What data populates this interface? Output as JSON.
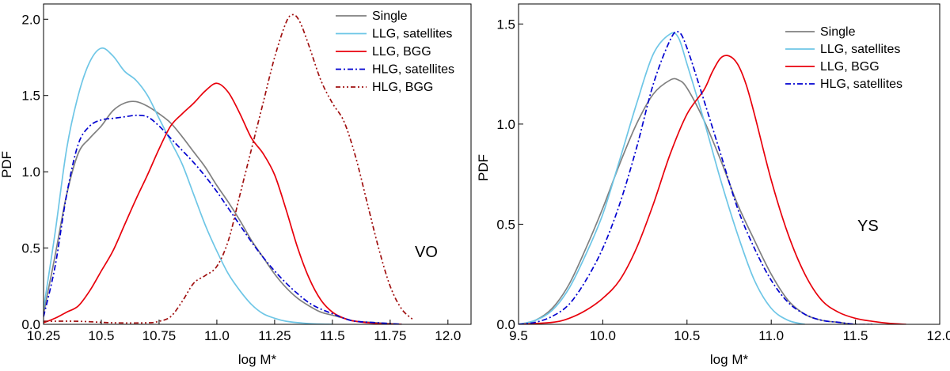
{
  "chart_data": [
    {
      "type": "line",
      "id": "left",
      "xlabel": "log M*",
      "ylabel": "PDF",
      "annotation": "VO",
      "xlim": [
        10.25,
        12.1
      ],
      "ylim": [
        0,
        2.1
      ],
      "xticks": [
        10.25,
        10.5,
        10.75,
        11.0,
        11.25,
        11.5,
        11.75,
        12.0
      ],
      "xtick_labels": [
        "10.25",
        "10.5",
        "10.75",
        "11.0",
        "11.25",
        "11.5",
        "11.75",
        "12.0"
      ],
      "yticks": [
        0.0,
        0.5,
        1.0,
        1.5,
        2.0
      ],
      "ytick_labels": [
        "0.0",
        "0.5",
        "1.0",
        "1.5",
        "2.0"
      ],
      "legend_position": "top-right",
      "series": [
        {
          "name": "Single",
          "color": "#808080",
          "dash": "solid",
          "x": [
            10.25,
            10.3,
            10.35,
            10.4,
            10.45,
            10.5,
            10.55,
            10.6,
            10.65,
            10.7,
            10.75,
            10.8,
            10.85,
            10.9,
            10.95,
            11.0,
            11.05,
            11.1,
            11.15,
            11.2,
            11.25,
            11.3,
            11.35,
            11.4,
            11.45,
            11.5,
            11.55,
            11.6,
            11.7,
            11.8
          ],
          "y": [
            0.07,
            0.45,
            0.85,
            1.12,
            1.22,
            1.3,
            1.4,
            1.45,
            1.46,
            1.43,
            1.38,
            1.32,
            1.23,
            1.13,
            1.03,
            0.91,
            0.8,
            0.68,
            0.55,
            0.44,
            0.33,
            0.24,
            0.17,
            0.12,
            0.08,
            0.06,
            0.04,
            0.02,
            0.01,
            0.0
          ]
        },
        {
          "name": "LLG, satellites",
          "color": "#6ec6e6",
          "dash": "solid",
          "x": [
            10.25,
            10.3,
            10.35,
            10.4,
            10.45,
            10.5,
            10.55,
            10.6,
            10.65,
            10.7,
            10.75,
            10.8,
            10.85,
            10.9,
            10.95,
            11.0,
            11.05,
            11.1,
            11.15,
            11.2,
            11.25,
            11.3,
            11.4,
            11.5
          ],
          "y": [
            0.1,
            0.6,
            1.15,
            1.5,
            1.72,
            1.81,
            1.76,
            1.66,
            1.6,
            1.5,
            1.35,
            1.2,
            1.05,
            0.85,
            0.65,
            0.48,
            0.33,
            0.22,
            0.13,
            0.07,
            0.04,
            0.02,
            0.005,
            0.0
          ]
        },
        {
          "name": "LLG, BGG",
          "color": "#e8000b",
          "dash": "solid",
          "x": [
            10.25,
            10.3,
            10.35,
            10.4,
            10.45,
            10.5,
            10.55,
            10.6,
            10.65,
            10.7,
            10.75,
            10.8,
            10.85,
            10.9,
            10.95,
            11.0,
            11.05,
            11.1,
            11.15,
            11.2,
            11.25,
            11.3,
            11.35,
            11.4,
            11.45,
            11.5,
            11.55,
            11.6,
            11.7,
            11.8
          ],
          "y": [
            0.01,
            0.04,
            0.08,
            0.12,
            0.22,
            0.35,
            0.48,
            0.65,
            0.82,
            0.98,
            1.15,
            1.3,
            1.38,
            1.45,
            1.53,
            1.58,
            1.52,
            1.38,
            1.22,
            1.12,
            0.98,
            0.75,
            0.5,
            0.3,
            0.16,
            0.08,
            0.04,
            0.02,
            0.005,
            0.0
          ]
        },
        {
          "name": "HLG, satellites",
          "color": "#0000d0",
          "dash": "dashdot",
          "x": [
            10.25,
            10.3,
            10.35,
            10.4,
            10.45,
            10.5,
            10.55,
            10.6,
            10.65,
            10.7,
            10.75,
            10.8,
            10.85,
            10.9,
            10.95,
            11.0,
            11.05,
            11.1,
            11.15,
            11.2,
            11.25,
            11.3,
            11.35,
            11.4,
            11.45,
            11.5,
            11.55,
            11.6,
            11.7,
            11.8
          ],
          "y": [
            0.05,
            0.38,
            0.85,
            1.18,
            1.3,
            1.34,
            1.35,
            1.36,
            1.37,
            1.36,
            1.3,
            1.22,
            1.14,
            1.06,
            0.97,
            0.87,
            0.76,
            0.65,
            0.54,
            0.44,
            0.35,
            0.27,
            0.2,
            0.14,
            0.1,
            0.07,
            0.04,
            0.02,
            0.01,
            0.0
          ]
        },
        {
          "name": "HLG, BGG",
          "color": "#a01010",
          "dash": "dashdotdot",
          "x": [
            10.25,
            10.4,
            10.55,
            10.7,
            10.75,
            10.8,
            10.85,
            10.9,
            10.95,
            11.0,
            11.05,
            11.1,
            11.15,
            11.2,
            11.25,
            11.3,
            11.33,
            11.36,
            11.4,
            11.45,
            11.5,
            11.55,
            11.6,
            11.65,
            11.7,
            11.75,
            11.8,
            11.85
          ],
          "y": [
            0.02,
            0.02,
            0.01,
            0.01,
            0.02,
            0.05,
            0.15,
            0.27,
            0.32,
            0.38,
            0.55,
            0.85,
            1.15,
            1.45,
            1.75,
            1.98,
            2.03,
            1.98,
            1.82,
            1.6,
            1.45,
            1.33,
            1.1,
            0.8,
            0.5,
            0.25,
            0.1,
            0.03
          ]
        }
      ]
    },
    {
      "type": "line",
      "id": "right",
      "xlabel": "log M*",
      "ylabel": "PDF",
      "annotation": "YS",
      "xlim": [
        9.5,
        12.0
      ],
      "ylim": [
        0,
        1.6
      ],
      "xticks": [
        9.5,
        10.0,
        10.5,
        11.0,
        11.5,
        12.0
      ],
      "xtick_labels": [
        "9.5",
        "10.0",
        "10.5",
        "11.0",
        "11.5",
        "12.0"
      ],
      "yticks": [
        0.0,
        0.5,
        1.0,
        1.5
      ],
      "ytick_labels": [
        "0.0",
        "0.5",
        "1.0",
        "1.5"
      ],
      "legend_position": "top-right",
      "series": [
        {
          "name": "Single",
          "color": "#808080",
          "dash": "solid",
          "x": [
            9.5,
            9.6,
            9.7,
            9.8,
            9.9,
            10.0,
            10.1,
            10.2,
            10.3,
            10.4,
            10.45,
            10.5,
            10.6,
            10.7,
            10.8,
            10.9,
            11.0,
            11.1,
            11.2,
            11.3,
            11.4,
            11.5,
            11.6
          ],
          "y": [
            0.0,
            0.02,
            0.08,
            0.2,
            0.38,
            0.58,
            0.8,
            1.0,
            1.15,
            1.22,
            1.22,
            1.18,
            1.02,
            0.82,
            0.6,
            0.42,
            0.25,
            0.12,
            0.05,
            0.02,
            0.01,
            0.0,
            0.0
          ]
        },
        {
          "name": "LLG, satellites",
          "color": "#6ec6e6",
          "dash": "solid",
          "x": [
            9.5,
            9.6,
            9.7,
            9.8,
            9.9,
            10.0,
            10.1,
            10.2,
            10.3,
            10.4,
            10.45,
            10.5,
            10.6,
            10.7,
            10.8,
            10.9,
            11.0,
            11.1,
            11.2
          ],
          "y": [
            0.0,
            0.02,
            0.07,
            0.18,
            0.35,
            0.55,
            0.82,
            1.1,
            1.35,
            1.45,
            1.43,
            1.3,
            1.02,
            0.72,
            0.45,
            0.22,
            0.08,
            0.02,
            0.0
          ]
        },
        {
          "name": "LLG, BGG",
          "color": "#e8000b",
          "dash": "solid",
          "x": [
            9.5,
            9.7,
            9.8,
            9.9,
            10.0,
            10.1,
            10.2,
            10.3,
            10.4,
            10.5,
            10.6,
            10.65,
            10.7,
            10.75,
            10.8,
            10.85,
            10.9,
            11.0,
            11.1,
            11.2,
            11.3,
            11.4,
            11.5,
            11.6,
            11.7,
            11.8
          ],
          "y": [
            0.0,
            0.01,
            0.03,
            0.07,
            0.13,
            0.22,
            0.38,
            0.6,
            0.85,
            1.05,
            1.17,
            1.26,
            1.33,
            1.34,
            1.3,
            1.2,
            1.05,
            0.72,
            0.45,
            0.25,
            0.12,
            0.06,
            0.03,
            0.015,
            0.005,
            0.0
          ]
        },
        {
          "name": "HLG, satellites",
          "color": "#0000d0",
          "dash": "dashdot",
          "x": [
            9.5,
            9.6,
            9.7,
            9.8,
            9.9,
            10.0,
            10.1,
            10.2,
            10.3,
            10.4,
            10.45,
            10.5,
            10.6,
            10.7,
            10.8,
            10.9,
            11.0,
            11.1,
            11.2,
            11.3,
            11.4,
            11.5,
            11.6
          ],
          "y": [
            0.0,
            0.01,
            0.04,
            0.1,
            0.22,
            0.38,
            0.6,
            0.88,
            1.2,
            1.42,
            1.46,
            1.38,
            1.12,
            0.85,
            0.58,
            0.38,
            0.22,
            0.11,
            0.05,
            0.02,
            0.01,
            0.0,
            0.0
          ]
        }
      ]
    }
  ]
}
